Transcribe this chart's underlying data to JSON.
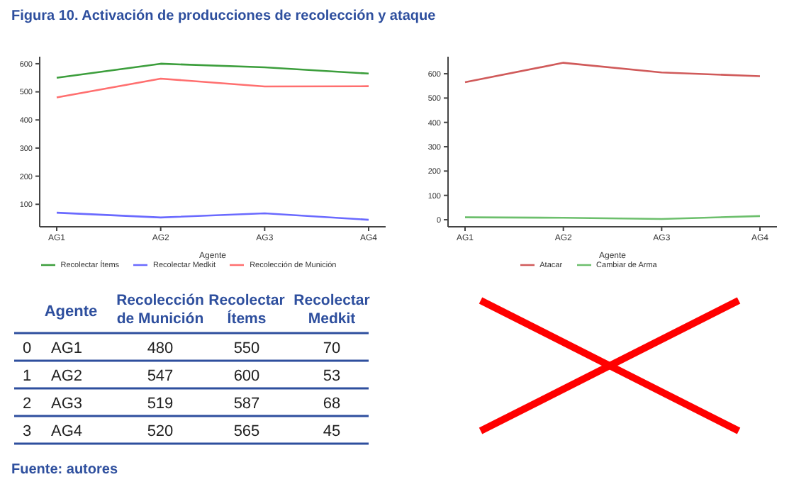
{
  "chart_data": [
    {
      "type": "line",
      "title": "Figura 10. Activación de producciones de recolección y ataque",
      "xlabel": "Agente",
      "categories": [
        "AG1",
        "AG2",
        "AG3",
        "AG4"
      ],
      "series": [
        {
          "name": "Recolectar Ítems",
          "color": "#3c9e3c",
          "values": [
            550,
            600,
            587,
            565
          ]
        },
        {
          "name": "Recolectar Medkit",
          "color": "#6a6aff",
          "values": [
            70,
            53,
            68,
            45
          ]
        },
        {
          "name": "Recolección de Munición",
          "color": "#ff6f6f",
          "values": [
            480,
            547,
            519,
            520
          ]
        }
      ],
      "ylim": [
        20,
        625
      ],
      "yticks": [
        100,
        200,
        300,
        400,
        500,
        600
      ],
      "grid": false,
      "legend": "bottom",
      "annotations": [
        "Fuente: autores"
      ]
    },
    {
      "type": "line",
      "xlabel": "Agente",
      "categories": [
        "AG1",
        "AG2",
        "AG3",
        "AG4"
      ],
      "series": [
        {
          "name": "Atacar",
          "color": "#d05a5a",
          "values": [
            565,
            645,
            605,
            590
          ]
        },
        {
          "name": "Cambiar de Arma",
          "color": "#6cbf6c",
          "values": [
            10,
            8,
            3,
            15
          ]
        }
      ],
      "ylim": [
        -29,
        670
      ],
      "yticks": [
        0,
        100,
        200,
        300,
        400,
        500,
        600
      ],
      "grid": false,
      "legend": "bottom"
    },
    {
      "type": "heatmap",
      "ylabel": "Agente",
      "categories": [
        "Recolección de Munición",
        "Recolectar Ítems",
        "Recolectar Medkit"
      ],
      "y_categories": [
        "0",
        "1",
        "2",
        "3"
      ],
      "y2_categories": [
        "AG1",
        "AG2",
        "AG3",
        "AG4"
      ],
      "cells": [
        [
          null,
          null,
          null
        ],
        [
          null,
          null,
          null
        ],
        [
          null,
          null,
          null
        ],
        [
          null,
          null,
          null
        ]
      ],
      "cell_labels": [
        [
          "480",
          "550",
          "70"
        ],
        [
          "547",
          "600",
          "53"
        ],
        [
          "519",
          "587",
          "68"
        ],
        [
          "520",
          "565",
          "45"
        ]
      ]
    }
  ]
}
